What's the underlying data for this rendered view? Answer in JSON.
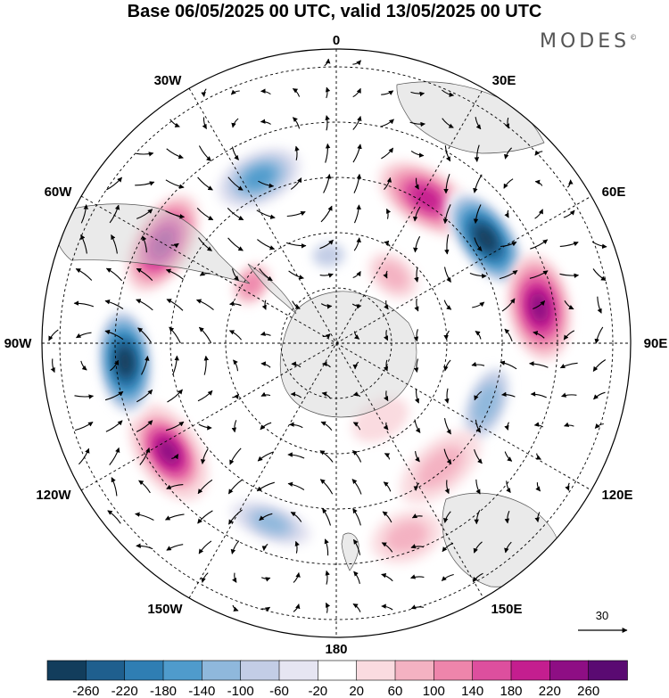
{
  "title": "Base 06/05/2025 00 UTC, valid 13/05/2025 00 UTC",
  "brand": "MODES",
  "brand_mark": "©",
  "longitude_labels": {
    "lon_0": "0",
    "lon_30e": "30E",
    "lon_60e": "60E",
    "lon_90e": "90E",
    "lon_120e": "120E",
    "lon_150e": "150E",
    "lon_180": "180",
    "lon_150w": "150W",
    "lon_120w": "120W",
    "lon_90w": "90W",
    "lon_60w": "60W",
    "lon_30w": "30W"
  },
  "vector_reference": "30",
  "colorbar": {
    "ticks": [
      "-260",
      "-220",
      "-180",
      "-140",
      "-100",
      "-60",
      "-20",
      "20",
      "60",
      "100",
      "140",
      "180",
      "220",
      "260"
    ],
    "colors": [
      "#123d5c",
      "#1f5f8e",
      "#2f7eb3",
      "#4f9bcc",
      "#8fb8dc",
      "#c3cde6",
      "#e6e5f2",
      "#ffffff",
      "#fadbe0",
      "#f4b2c2",
      "#ee85ab",
      "#dd4f9e",
      "#c41e8f",
      "#8e0e84",
      "#5a0a72"
    ]
  },
  "anomaly_centers": [
    {
      "lon": -25,
      "lat_ring": 0.62,
      "value": -170,
      "rx": 0.16,
      "ry": 0.09
    },
    {
      "lon": 32,
      "lat_ring": 0.58,
      "value": 200,
      "rx": 0.16,
      "ry": 0.08
    },
    {
      "lon": 55,
      "lat_ring": 0.62,
      "value": -270,
      "rx": 0.17,
      "ry": 0.08
    },
    {
      "lon": 80,
      "lat_ring": 0.7,
      "value": 230,
      "rx": 0.16,
      "ry": 0.09
    },
    {
      "lon": 112,
      "lat_ring": 0.55,
      "value": -120,
      "rx": 0.15,
      "ry": 0.07
    },
    {
      "lon": 140,
      "lat_ring": 0.55,
      "value": 70,
      "rx": 0.14,
      "ry": 0.07
    },
    {
      "lon": 160,
      "lat_ring": 0.7,
      "value": 60,
      "rx": 0.1,
      "ry": 0.07
    },
    {
      "lon": -160,
      "lat_ring": 0.65,
      "value": -140,
      "rx": 0.16,
      "ry": 0.06
    },
    {
      "lon": -123,
      "lat_ring": 0.68,
      "value": 250,
      "rx": 0.16,
      "ry": 0.09
    },
    {
      "lon": -95,
      "lat_ring": 0.72,
      "value": -270,
      "rx": 0.17,
      "ry": 0.08
    },
    {
      "lon": -60,
      "lat_ring": 0.68,
      "value": 240,
      "rx": 0.16,
      "ry": 0.08
    },
    {
      "lon": -5,
      "lat_ring": 0.3,
      "value": -70,
      "rx": 0.06,
      "ry": 0.05
    },
    {
      "lon": -55,
      "lat_ring": 0.35,
      "value": 120,
      "rx": 0.05,
      "ry": 0.04
    },
    {
      "lon": 40,
      "lat_ring": 0.3,
      "value": 60,
      "rx": 0.07,
      "ry": 0.05
    },
    {
      "lon": 150,
      "lat_ring": 0.3,
      "value": 50,
      "rx": 0.08,
      "ry": 0.05
    }
  ]
}
